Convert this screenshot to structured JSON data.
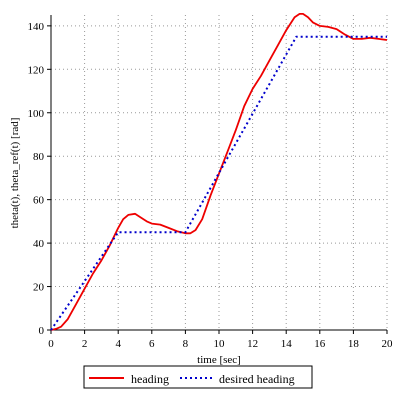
{
  "chart_data": {
    "type": "line",
    "xlabel": "time [sec]",
    "ylabel": "theta(t), theta_ref(t) [rad]",
    "xlim": [
      0,
      20
    ],
    "ylim": [
      0,
      145
    ],
    "x_ticks": [
      0,
      2,
      4,
      6,
      8,
      10,
      12,
      14,
      16,
      18,
      20
    ],
    "y_ticks": [
      0,
      20,
      40,
      60,
      80,
      100,
      120,
      140
    ],
    "grid": true,
    "legend_position": "bottom-center",
    "series": [
      {
        "name": "heading",
        "color": "#ee0000",
        "style": "solid",
        "x": [
          0,
          0.3,
          0.6,
          1.0,
          1.5,
          2.0,
          2.5,
          3.0,
          3.5,
          4.0,
          4.3,
          4.6,
          5.0,
          5.3,
          5.7,
          6.0,
          6.5,
          7.0,
          7.5,
          8.0,
          8.3,
          8.6,
          9.0,
          9.5,
          10.0,
          10.5,
          11.0,
          11.5,
          12.0,
          12.5,
          13.0,
          13.5,
          14.0,
          14.5,
          14.8,
          15.0,
          15.3,
          15.6,
          16.0,
          16.5,
          17.0,
          17.5,
          18.0,
          18.5,
          19.0,
          19.5,
          20.0
        ],
        "y": [
          0,
          0.5,
          1.5,
          5,
          12,
          19,
          26,
          32,
          39,
          47,
          51,
          53,
          53.5,
          52,
          50,
          49,
          48.5,
          47,
          45.5,
          44.5,
          44.5,
          46,
          51,
          62,
          72,
          82,
          92,
          103,
          111,
          117,
          124,
          131,
          138,
          144,
          145.5,
          145.5,
          144,
          141.5,
          140,
          139.5,
          138.5,
          136,
          134,
          134,
          134.5,
          134,
          133.5
        ]
      },
      {
        "name": "desired heading",
        "color": "#0000cc",
        "style": "dotted",
        "x": [
          0,
          4,
          8,
          14.6,
          20
        ],
        "y": [
          0,
          45,
          45,
          135,
          135
        ]
      }
    ]
  }
}
